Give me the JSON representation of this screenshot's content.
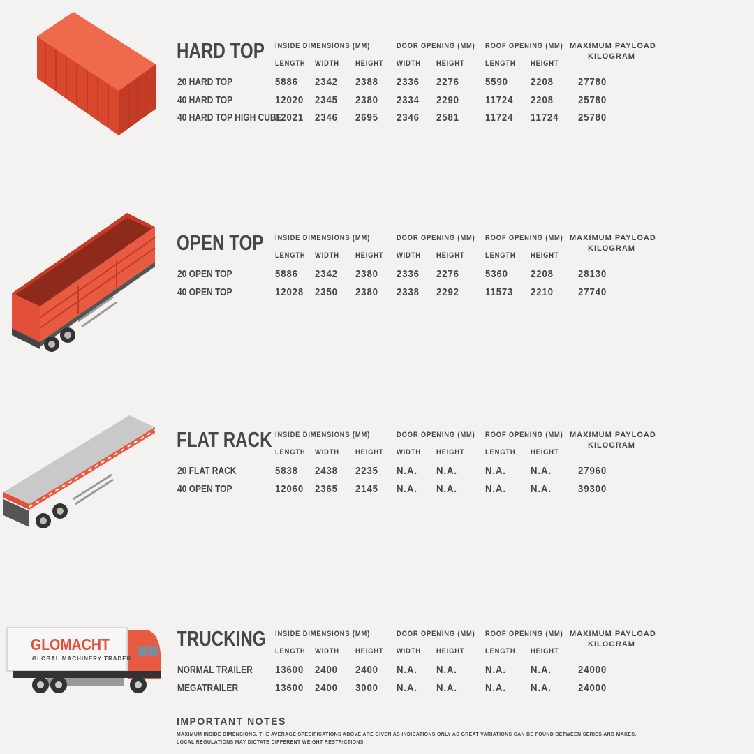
{
  "column_groups": {
    "inside": "INSIDE DIMENSIONS (MM)",
    "door": "DOOR OPENING (MM)",
    "roof": "ROOF OPENING (MM)",
    "payload_line1": "MAXIMUM PAYLOAD",
    "payload_line2": "KILOGRAM"
  },
  "column_subheaders": {
    "inside": [
      "LENGTH",
      "WIDTH",
      "HEIGHT"
    ],
    "door": [
      "WIDTH",
      "HEIGHT"
    ],
    "roof": [
      "LENGTH",
      "HEIGHT"
    ]
  },
  "sections": [
    {
      "title": "HARD TOP",
      "illustration": "container-icon",
      "rows": [
        {
          "name": "20 HARD TOP",
          "values": [
            "5886",
            "2342",
            "2388",
            "2336",
            "2276",
            "5590",
            "2208",
            "27780"
          ]
        },
        {
          "name": "40 HARD TOP",
          "values": [
            "12020",
            "2345",
            "2380",
            "2334",
            "2290",
            "11724",
            "2208",
            "25780"
          ]
        },
        {
          "name": "40 HARD TOP HIGH CUBE",
          "values": [
            "12021",
            "2346",
            "2695",
            "2346",
            "2581",
            "11724",
            "11724",
            "25780"
          ]
        }
      ]
    },
    {
      "title": "OPEN TOP",
      "illustration": "open-top-trailer-icon",
      "rows": [
        {
          "name": "20 OPEN TOP",
          "values": [
            "5886",
            "2342",
            "2380",
            "2336",
            "2276",
            "5360",
            "2208",
            "28130"
          ]
        },
        {
          "name": "40 OPEN TOP",
          "values": [
            "12028",
            "2350",
            "2380",
            "2338",
            "2292",
            "11573",
            "2210",
            "27740"
          ]
        }
      ]
    },
    {
      "title": "FLAT RACK",
      "illustration": "flat-rack-trailer-icon",
      "rows": [
        {
          "name": "20 FLAT RACK",
          "values": [
            "5838",
            "2438",
            "2235",
            "N.A.",
            "N.A.",
            "N.A.",
            "N.A.",
            "27960"
          ]
        },
        {
          "name": "40 OPEN TOP",
          "values": [
            "12060",
            "2365",
            "2145",
            "N.A.",
            "N.A.",
            "N.A.",
            "N.A.",
            "39300"
          ]
        }
      ]
    },
    {
      "title": "TRUCKING",
      "illustration": "truck-icon",
      "rows": [
        {
          "name": "NORMAL TRAILER",
          "values": [
            "13600",
            "2400",
            "2400",
            "N.A.",
            "N.A.",
            "N.A.",
            "N.A.",
            "24000"
          ]
        },
        {
          "name": "MEGATRAILER",
          "values": [
            "13600",
            "2400",
            "3000",
            "N.A.",
            "N.A.",
            "N.A.",
            "N.A.",
            "24000"
          ]
        }
      ]
    }
  ],
  "logo": {
    "name": "GLOMACHT",
    "tagline": "GLOBAL MACHINERY TRADER"
  },
  "notes": {
    "title": "IMPORTANT NOTES",
    "lines": [
      "MAXIMUM INSIDE DIMENSIONS. THE AVERAGE SPECIFICATIONS ABOVE ARE GIVEN AS INDICATIONS ONLY AS GREAT VARIATIONS CAN BE FOUND BETWEEN SERIES AND MAKES.",
      "LOCAL REGULATIONS MAY DICTATE DIFFERENT WEIGHT RESTRICTIONS."
    ]
  },
  "colors": {
    "accent": "#e2503a",
    "text": "#45474a",
    "background": "#f3f2f0"
  }
}
